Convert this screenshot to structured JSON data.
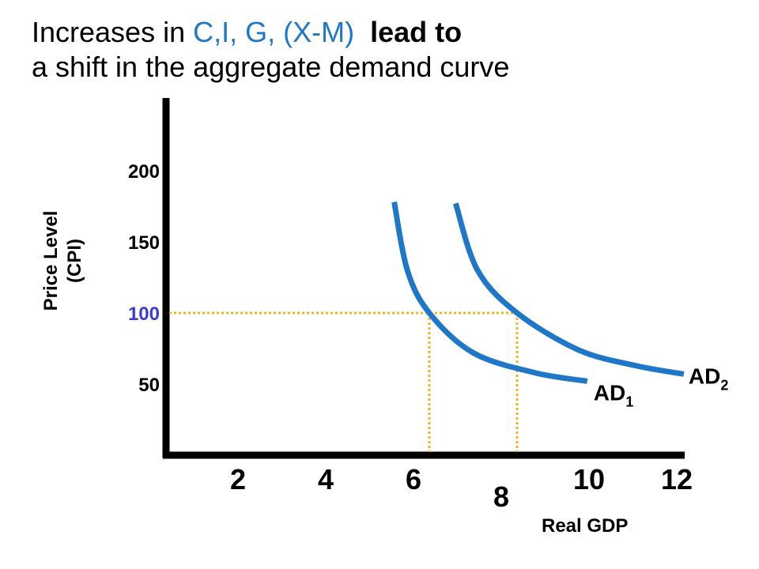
{
  "title": {
    "part1": "Increases in ",
    "highlight": "C,I, G, (X-M)",
    "part2": "lead to",
    "line2": "a shift in the aggregate demand curve"
  },
  "colors": {
    "accent": "#1f77c8",
    "guide": "#f5b21f",
    "highlight_tick": "#3b3bd6",
    "axis": "#000000"
  },
  "chart_data": {
    "type": "line",
    "xlabel": "Real GDP",
    "ylabel_lines": [
      "Price Level",
      "(CPI)"
    ],
    "x_ticks": [
      2,
      4,
      6,
      8,
      10,
      12
    ],
    "y_ticks": [
      200,
      150,
      100,
      50
    ],
    "highlighted_y_tick": 100,
    "series": [
      {
        "name": "AD",
        "subscript": "1",
        "points": [
          [
            5.2,
            178
          ],
          [
            5.5,
            130
          ],
          [
            6.0,
            100
          ],
          [
            7.0,
            72
          ],
          [
            8.4,
            58
          ],
          [
            9.6,
            52
          ]
        ]
      },
      {
        "name": "AD",
        "subscript": "2",
        "points": [
          [
            6.6,
            177
          ],
          [
            7.1,
            130
          ],
          [
            8.0,
            100
          ],
          [
            9.4,
            74
          ],
          [
            10.7,
            63
          ],
          [
            11.8,
            57
          ]
        ]
      }
    ],
    "guides": [
      {
        "x": 6,
        "y": 100
      },
      {
        "x": 8,
        "y": 100
      }
    ],
    "grid": false
  }
}
